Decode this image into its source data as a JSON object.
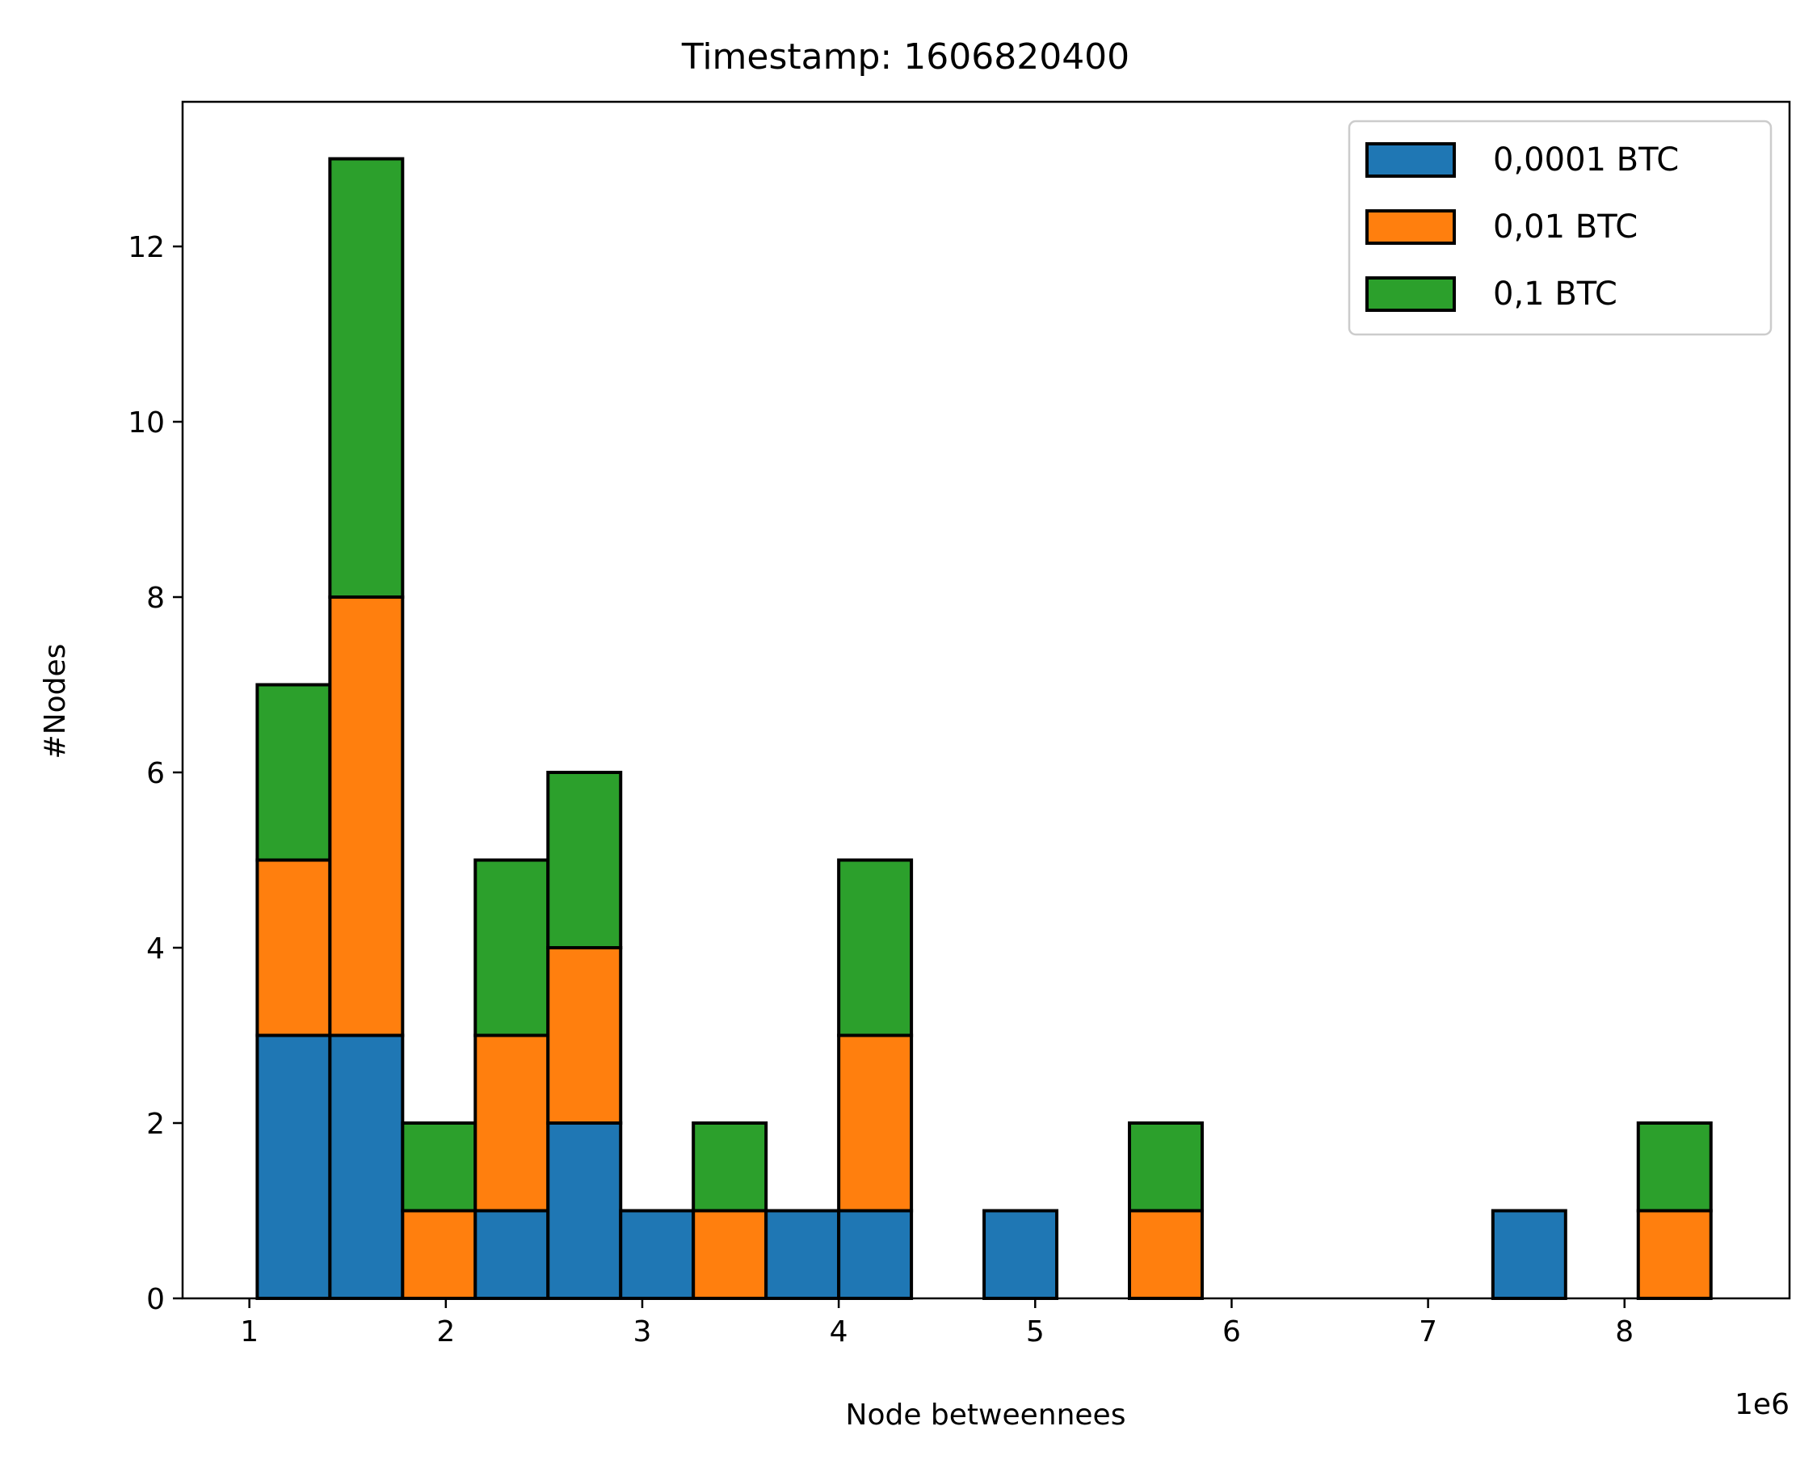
{
  "chart_data": {
    "type": "bar",
    "stacked": true,
    "histogram": true,
    "title": "Timestamp: 1606820400",
    "xlabel": "Node betweennees",
    "ylabel": "#Nodes",
    "x_offset_label": "1e6",
    "xlim": [
      0.66,
      8.84
    ],
    "ylim": [
      0,
      13.65
    ],
    "x_ticks": [
      1,
      2,
      3,
      4,
      5,
      6,
      7,
      8
    ],
    "y_ticks": [
      0,
      2,
      4,
      6,
      8,
      10,
      12
    ],
    "bin_edges": [
      1.04,
      1.41,
      1.78,
      2.15,
      2.52,
      2.89,
      3.26,
      3.63,
      4.0,
      4.37,
      4.74,
      5.11,
      5.48,
      5.85,
      6.22,
      6.59,
      6.96,
      7.33,
      7.7,
      8.07,
      8.44
    ],
    "legend_position": "top-right",
    "grid": false,
    "series": [
      {
        "name": "0,0001 BTC",
        "color": "#1f77b4",
        "values": [
          3,
          3,
          0,
          1,
          2,
          1,
          0,
          1,
          1,
          0,
          1,
          0,
          0,
          0,
          0,
          0,
          0,
          1,
          0,
          0
        ]
      },
      {
        "name": "0,01 BTC",
        "color": "#ff7f0e",
        "values": [
          2,
          5,
          1,
          2,
          2,
          0,
          1,
          0,
          2,
          0,
          0,
          0,
          1,
          0,
          0,
          0,
          0,
          0,
          0,
          1
        ]
      },
      {
        "name": "0,1 BTC",
        "color": "#2ca02c",
        "values": [
          2,
          5,
          1,
          2,
          2,
          0,
          1,
          0,
          2,
          0,
          0,
          0,
          1,
          0,
          0,
          0,
          0,
          0,
          0,
          1
        ]
      }
    ]
  }
}
